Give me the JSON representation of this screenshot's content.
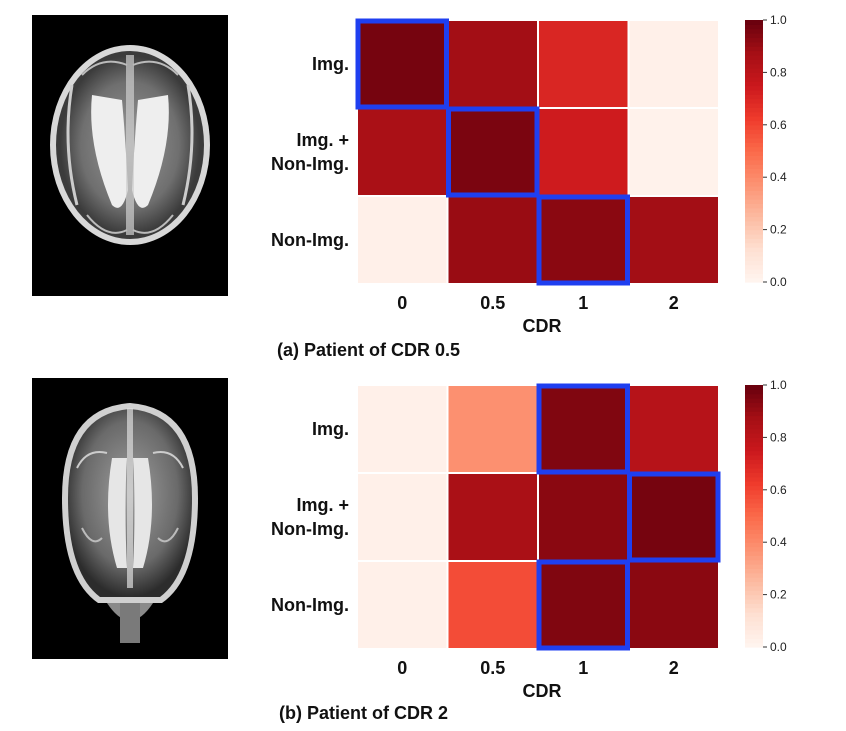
{
  "chart_data": [
    {
      "type": "heatmap",
      "caption": "(a) Patient of CDR 0.5",
      "xlabel": "CDR",
      "x": [
        "0",
        "0.5",
        "1",
        "2"
      ],
      "y": [
        "Img.",
        "Img. +\nNon-Img.",
        "Non-Img."
      ],
      "values": [
        [
          0.97,
          0.88,
          0.7,
          0.03
        ],
        [
          0.86,
          0.96,
          0.74,
          0.02
        ],
        [
          0.03,
          0.9,
          0.93,
          0.88
        ]
      ],
      "highlighted": [
        [
          0,
          0
        ],
        [
          1,
          1
        ],
        [
          2,
          2
        ]
      ],
      "colorbar": {
        "range": [
          0.0,
          1.0
        ],
        "ticks": [
          "0.0",
          "0.2",
          "0.4",
          "0.6",
          "0.8",
          "1.0"
        ]
      }
    },
    {
      "type": "heatmap",
      "caption": "(b) Patient of CDR 2",
      "xlabel": "CDR",
      "x": [
        "0",
        "0.5",
        "1",
        "2"
      ],
      "y": [
        "Img.",
        "Img. +\nNon-Img.",
        "Non-Img."
      ],
      "values": [
        [
          0.03,
          0.38,
          0.95,
          0.82
        ],
        [
          0.03,
          0.86,
          0.93,
          0.97
        ],
        [
          0.03,
          0.58,
          0.95,
          0.93
        ]
      ],
      "highlighted": [
        [
          0,
          2
        ],
        [
          1,
          3
        ],
        [
          2,
          2
        ]
      ],
      "colorbar": {
        "range": [
          0.0,
          1.0
        ],
        "ticks": [
          "0.0",
          "0.2",
          "0.4",
          "0.6",
          "0.8",
          "1.0"
        ]
      }
    }
  ],
  "colors": {
    "colormap": "Reds",
    "highlight": "#1f3ff0",
    "cell_gap": "#ffffff",
    "image_background": "#000000"
  },
  "images": [
    {
      "type": "mri-brain-axial"
    },
    {
      "type": "mri-brain-coronal"
    }
  ]
}
